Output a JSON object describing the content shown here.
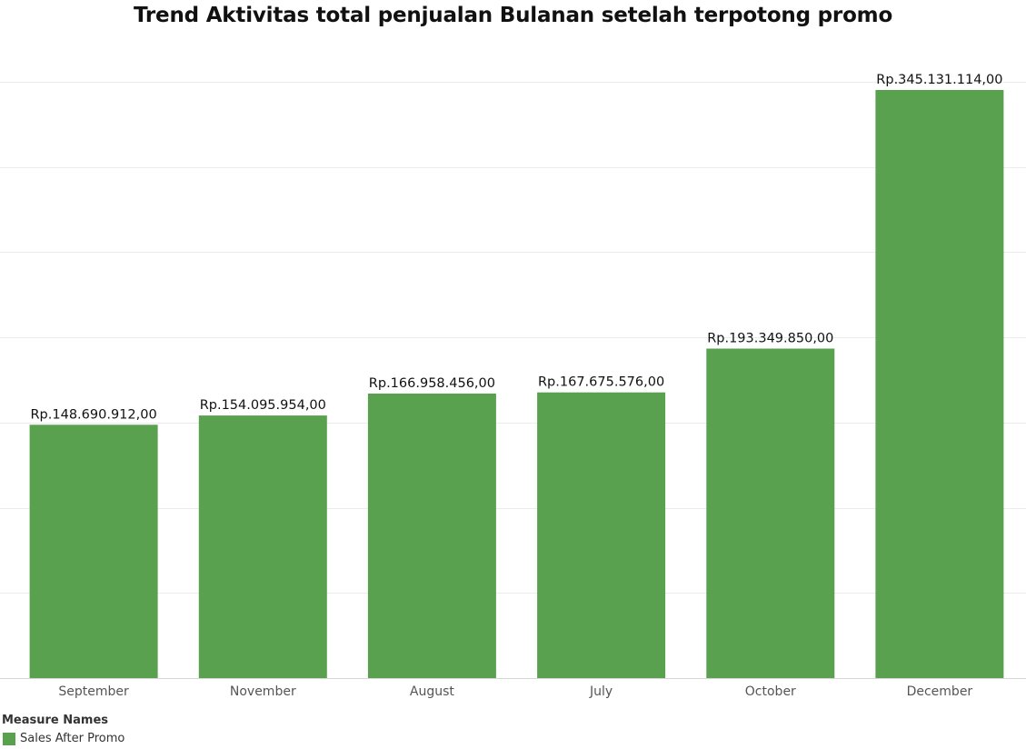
{
  "chart_data": {
    "type": "bar",
    "title": "Trend Aktivitas total penjualan Bulanan setelah terpotong promo",
    "categories": [
      "September",
      "November",
      "August",
      "July",
      "October",
      "December"
    ],
    "series": [
      {
        "name": "Sales After Promo",
        "color": "#59a14f",
        "values": [
          148690912,
          154095954,
          166958456,
          167675576,
          193349850,
          345131114
        ],
        "data_labels": [
          "Rp.148.690.912,00",
          "Rp.154.095.954,00",
          "Rp.166.958.456,00",
          "Rp.167.675.576,00",
          "Rp.193.349.850,00",
          "Rp.345.131.114,00"
        ]
      }
    ],
    "ylim": [
      0,
      375000000
    ],
    "grid": true,
    "y_axis_labels_visible": false,
    "legend": {
      "title": "Measure Names",
      "placement": "bottom-left",
      "items": [
        {
          "label": "Sales After Promo",
          "color": "#59a14f"
        }
      ]
    }
  }
}
